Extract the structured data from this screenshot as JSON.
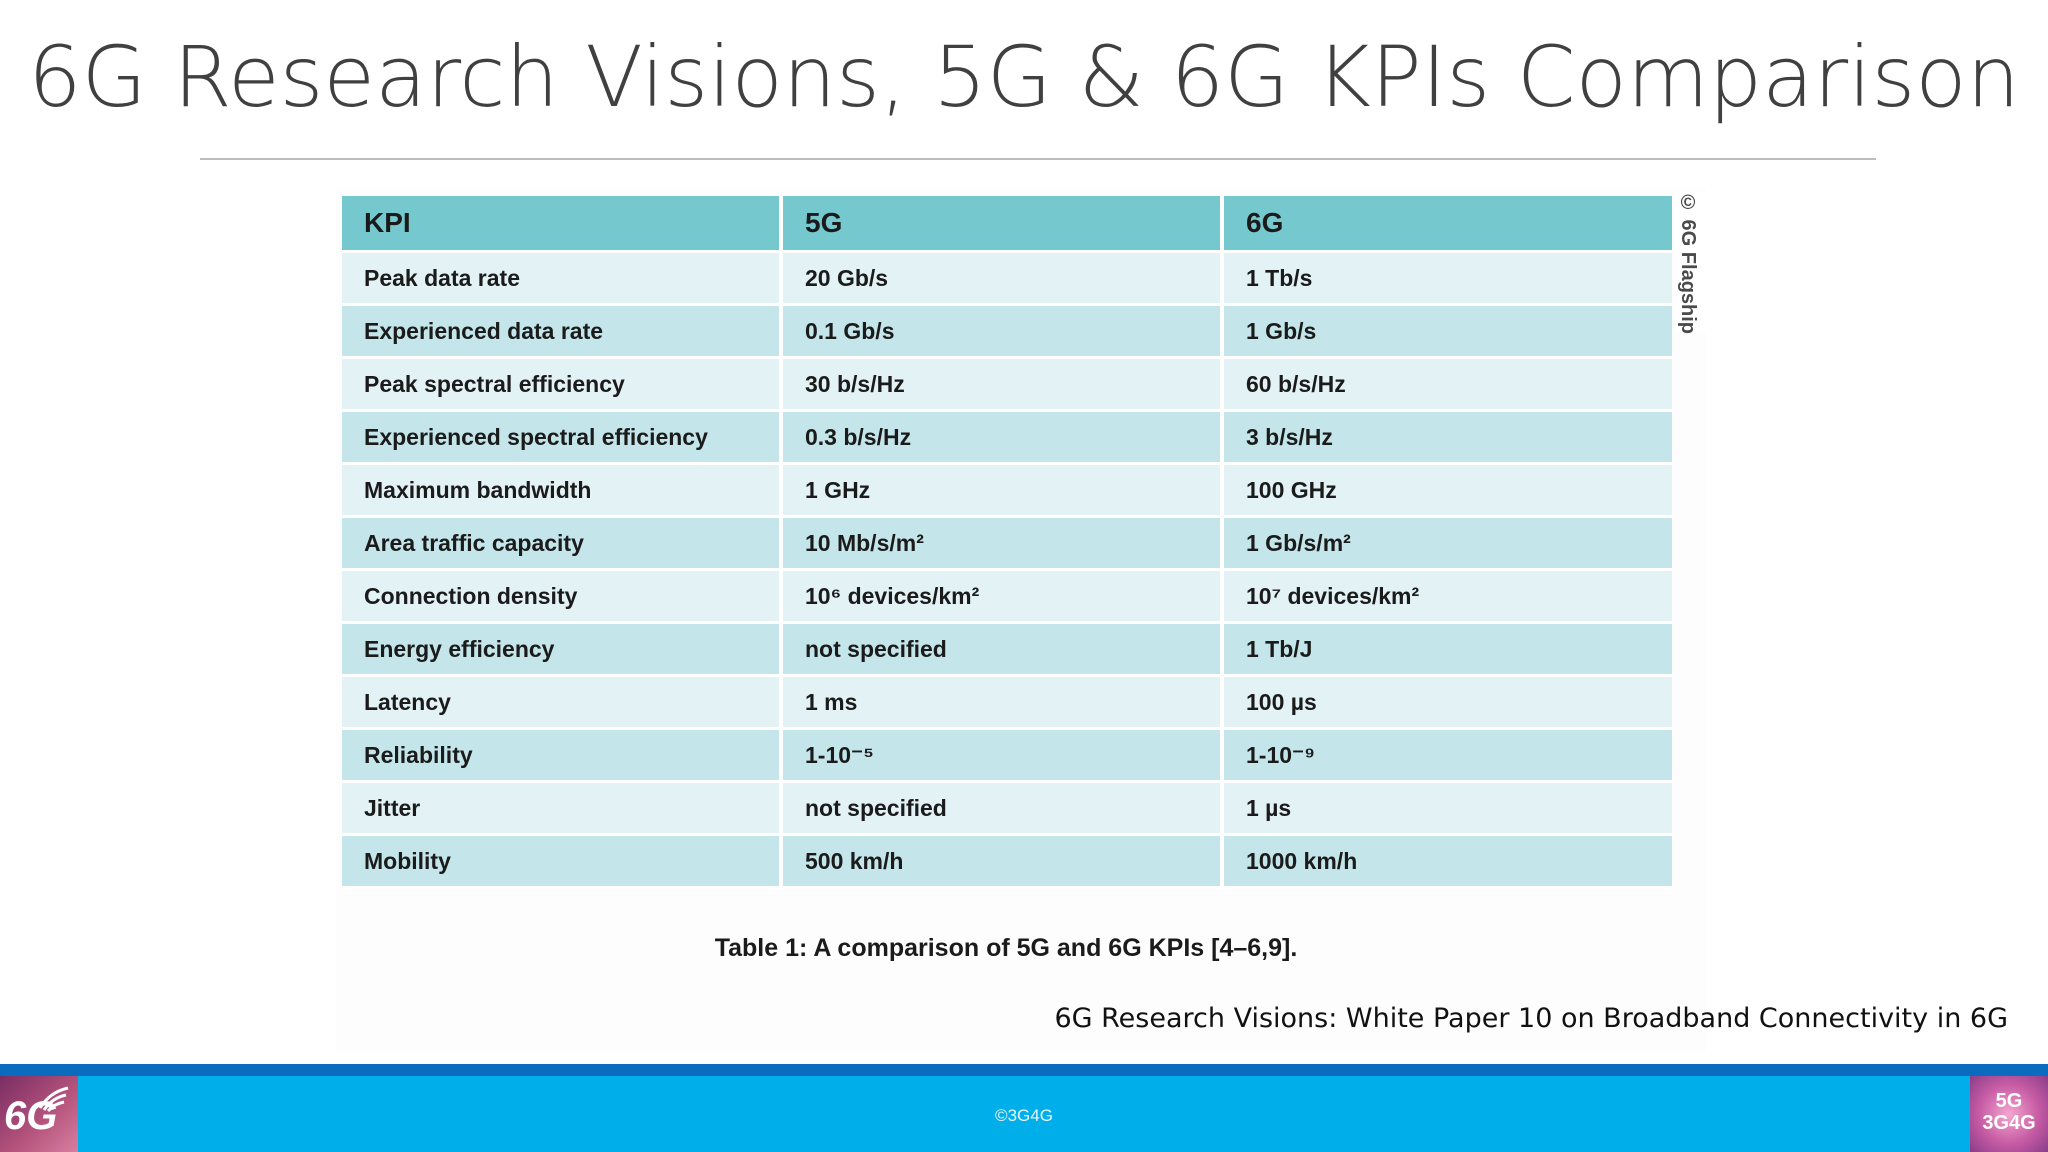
{
  "slide": {
    "title": "6G Research Visions, 5G & 6G KPIs Comparison",
    "source_note": "6G Research Visions: White Paper 10 on Broadband Connectivity in 6G"
  },
  "table": {
    "headers": [
      "KPI",
      "5G",
      "6G"
    ],
    "rows": [
      [
        "Peak data rate",
        "20 Gb/s",
        "1 Tb/s"
      ],
      [
        "Experienced data rate",
        "0.1 Gb/s",
        "1 Gb/s"
      ],
      [
        "Peak spectral efficiency",
        "30 b/s/Hz",
        "60 b/s/Hz"
      ],
      [
        "Experienced spectral efficiency",
        "0.3 b/s/Hz",
        "3 b/s/Hz"
      ],
      [
        "Maximum bandwidth",
        "1 GHz",
        "100 GHz"
      ],
      [
        "Area traffic capacity",
        "10 Mb/s/m²",
        "1 Gb/s/m²"
      ],
      [
        "Connection density",
        "10⁶ devices/km²",
        "10⁷ devices/km²"
      ],
      [
        "Energy efficiency",
        "not specified",
        "1 Tb/J"
      ],
      [
        "Latency",
        "1 ms",
        "100 µs"
      ],
      [
        "Reliability",
        "1-10⁻⁵",
        "1-10⁻⁹"
      ],
      [
        "Jitter",
        "not specified",
        "1 µs"
      ],
      [
        "Mobility",
        "500 km/h",
        "1000 km/h"
      ]
    ],
    "caption": "Table 1: A comparison of 5G and 6G KPIs [4–6,9].",
    "watermark": "© 6G Flagship"
  },
  "footer": {
    "copyright": "©3G4G",
    "logo_left": {
      "icon": "6g-wireless-logo",
      "text": "6G"
    },
    "logo_right": {
      "icon": "3g4g-logo",
      "line1": "5G",
      "line2": "3G4G"
    }
  },
  "colors": {
    "header_teal": "#76c8cf",
    "row_light": "#e2f2f5",
    "row_dark": "#c4e6ea",
    "footer_blue": "#00aee9",
    "footer_strip": "#0a6bbf"
  }
}
